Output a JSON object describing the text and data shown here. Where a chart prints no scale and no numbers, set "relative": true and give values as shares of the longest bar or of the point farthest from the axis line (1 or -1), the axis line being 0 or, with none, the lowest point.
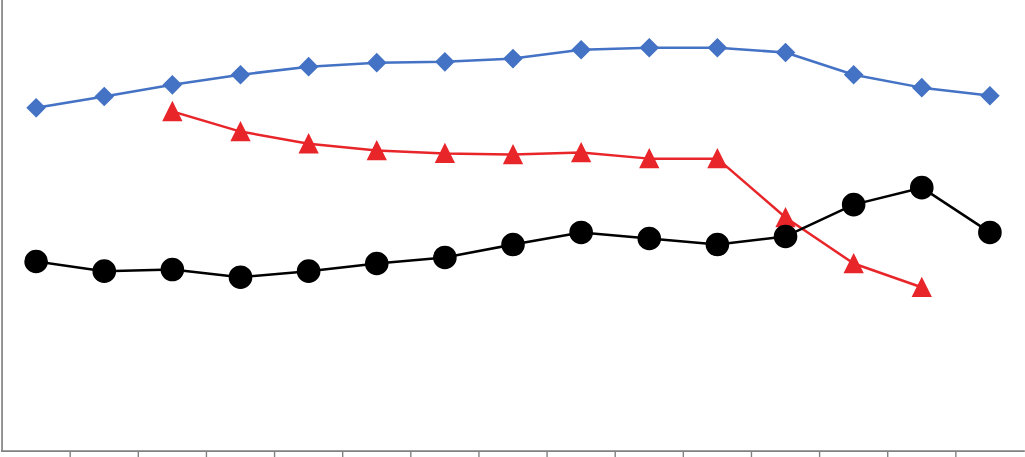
{
  "chart_data": {
    "type": "line",
    "relative": true,
    "grid": false,
    "categories": [
      null,
      null,
      null,
      null,
      null,
      null,
      null,
      null,
      null,
      null,
      null,
      null,
      null,
      null,
      null
    ],
    "series": [
      {
        "color": "#4472c4",
        "marker": "diamond",
        "values": [
          0.851,
          0.879,
          0.908,
          0.933,
          0.953,
          0.963,
          0.965,
          0.973,
          0.995,
          1,
          1,
          0.988,
          0.933,
          0.901,
          0.881
        ]
      },
      {
        "color": "#e8262a",
        "marker": "triangle",
        "values": [
          null,
          null,
          0.842,
          0.792,
          0.762,
          0.745,
          0.738,
          0.735,
          0.74,
          0.725,
          0.725,
          0.579,
          0.465,
          0.406,
          null
        ]
      },
      {
        "color": "#000000",
        "marker": "circle",
        "values": [
          0.47,
          0.446,
          0.45,
          0.431,
          0.446,
          0.465,
          0.48,
          0.512,
          0.542,
          0.527,
          0.512,
          0.532,
          0.611,
          0.653,
          0.542
        ]
      }
    ]
  }
}
